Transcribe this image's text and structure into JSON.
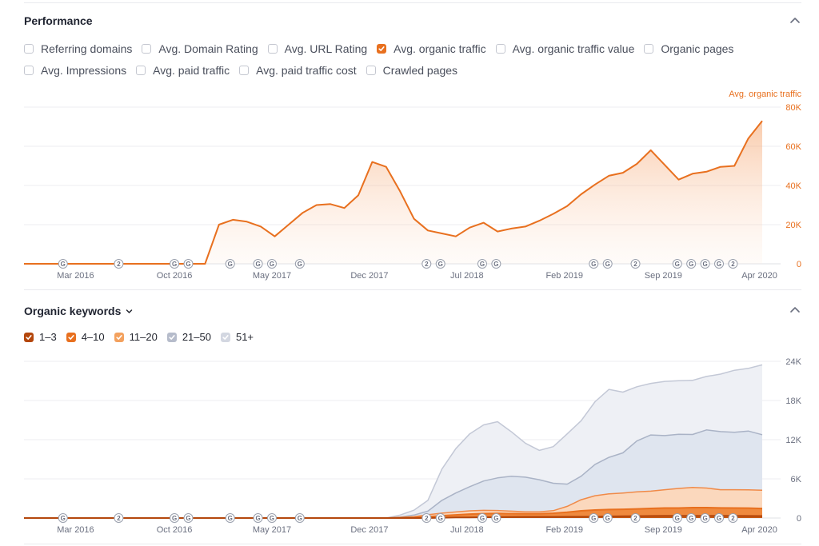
{
  "performance": {
    "title": "Performance",
    "checkboxes_row1": [
      {
        "label": "Referring domains",
        "checked": false
      },
      {
        "label": "Avg. Domain Rating",
        "checked": false
      },
      {
        "label": "Avg. URL Rating",
        "checked": false
      },
      {
        "label": "Avg. organic traffic",
        "checked": true
      },
      {
        "label": "Avg. organic traffic value",
        "checked": false
      },
      {
        "label": "Organic pages",
        "checked": false
      }
    ],
    "checkboxes_row2": [
      {
        "label": "Avg. Impressions",
        "checked": false
      },
      {
        "label": "Avg. paid traffic",
        "checked": false
      },
      {
        "label": "Avg. paid traffic cost",
        "checked": false
      },
      {
        "label": "Crawled pages",
        "checked": false
      }
    ],
    "series_label": "Avg. organic traffic"
  },
  "keywords": {
    "title": "Organic keywords",
    "legend": [
      {
        "label": "1–3",
        "color": "#b4470c"
      },
      {
        "label": "4–10",
        "color": "#e8701f"
      },
      {
        "label": "11–20",
        "color": "#f3a15e"
      },
      {
        "label": "21–50",
        "color": "#b6bccb"
      },
      {
        "label": "51+",
        "color": "#d3d7e1"
      }
    ]
  },
  "colors": {
    "accent": "#e8701f",
    "grid": "#e9eaee",
    "axis_text": "#6b7080"
  },
  "chart_data": [
    {
      "type": "area",
      "title": "Performance",
      "series": [
        {
          "name": "Avg. organic traffic",
          "color": "#e8701f",
          "values": [
            0,
            0,
            0,
            0,
            0,
            0,
            0,
            0,
            0,
            0,
            0,
            0,
            0,
            0,
            20000,
            22500,
            21500,
            19000,
            14000,
            20000,
            26000,
            30000,
            30500,
            28500,
            35000,
            52000,
            49500,
            37000,
            23000,
            17000,
            15500,
            14000,
            18500,
            21000,
            16500,
            18000,
            19000,
            22000,
            25500,
            29500,
            35500,
            40500,
            45000,
            46500,
            51000,
            58000,
            50500,
            43000,
            46000,
            47000,
            49500,
            50000,
            64000,
            73000
          ]
        }
      ],
      "x_count": 54,
      "xticks": [
        {
          "label": "Mar 2016",
          "index": 3.7
        },
        {
          "label": "Oct 2016",
          "index": 10.8
        },
        {
          "label": "May 2017",
          "index": 17.8
        },
        {
          "label": "Dec 2017",
          "index": 24.8
        },
        {
          "label": "Jul 2018",
          "index": 31.8
        },
        {
          "label": "Feb 2019",
          "index": 38.8
        },
        {
          "label": "Sep 2019",
          "index": 45.9
        },
        {
          "label": "Apr 2020",
          "index": 52.8
        }
      ],
      "yticks": [
        "0",
        "20K",
        "40K",
        "60K",
        "80K"
      ],
      "ylim": [
        0,
        80000
      ],
      "ylabel": "Avg. organic traffic",
      "markers": [
        {
          "label": "G",
          "index": 2.8
        },
        {
          "label": "2",
          "index": 6.8
        },
        {
          "label": "G",
          "index": 10.8
        },
        {
          "label": "G",
          "index": 11.8
        },
        {
          "label": "G",
          "index": 14.8
        },
        {
          "label": "G",
          "index": 16.8
        },
        {
          "label": "G",
          "index": 17.8
        },
        {
          "label": "G",
          "index": 19.8
        },
        {
          "label": "2",
          "index": 28.9
        },
        {
          "label": "G",
          "index": 29.9
        },
        {
          "label": "G",
          "index": 32.9
        },
        {
          "label": "G",
          "index": 33.9
        },
        {
          "label": "G",
          "index": 40.9
        },
        {
          "label": "G",
          "index": 41.9
        },
        {
          "label": "2",
          "index": 43.9
        },
        {
          "label": "G",
          "index": 46.9
        },
        {
          "label": "G",
          "index": 47.9
        },
        {
          "label": "G",
          "index": 48.9
        },
        {
          "label": "G",
          "index": 49.9
        },
        {
          "label": "2",
          "index": 50.9
        }
      ]
    },
    {
      "type": "area",
      "title": "Organic keywords",
      "stacked": true,
      "x_count": 54,
      "series": [
        {
          "name": "1–3",
          "color": "#b4470c",
          "values": [
            0,
            0,
            0,
            0,
            0,
            0,
            0,
            0,
            0,
            0,
            0,
            0,
            0,
            0,
            0,
            0,
            0,
            0,
            0,
            0,
            0,
            0,
            0,
            0,
            0,
            0,
            0,
            0,
            0,
            0,
            50,
            80,
            100,
            120,
            150,
            170,
            180,
            180,
            180,
            190,
            200,
            220,
            250,
            280,
            300,
            320,
            330,
            330,
            340,
            340,
            340,
            330,
            320,
            310
          ]
        },
        {
          "name": "4–10",
          "color": "#e8701f",
          "values": [
            0,
            0,
            0,
            0,
            0,
            0,
            0,
            0,
            0,
            0,
            0,
            0,
            0,
            0,
            0,
            0,
            0,
            0,
            0,
            0,
            0,
            0,
            0,
            0,
            0,
            0,
            0,
            50,
            100,
            200,
            300,
            400,
            500,
            550,
            550,
            500,
            480,
            480,
            550,
            700,
            900,
            1000,
            1050,
            1050,
            1100,
            1150,
            1200,
            1200,
            1250,
            1250,
            1200,
            1200,
            1200,
            1150
          ]
        },
        {
          "name": "11–20",
          "color": "#f3a15e",
          "values": [
            0,
            0,
            0,
            0,
            0,
            0,
            0,
            0,
            0,
            0,
            0,
            0,
            0,
            0,
            0,
            0,
            0,
            0,
            0,
            0,
            0,
            0,
            0,
            0,
            0,
            0,
            0,
            50,
            100,
            300,
            400,
            450,
            500,
            500,
            450,
            380,
            300,
            300,
            400,
            900,
            1700,
            2200,
            2400,
            2500,
            2600,
            2650,
            2800,
            3000,
            3100,
            3000,
            2800,
            2800,
            2800,
            2800
          ]
        },
        {
          "name": "21–50",
          "color": "#b6bccb",
          "values": [
            0,
            0,
            0,
            0,
            0,
            0,
            0,
            0,
            0,
            0,
            0,
            0,
            0,
            0,
            0,
            0,
            0,
            0,
            0,
            0,
            0,
            0,
            0,
            0,
            0,
            0,
            0,
            50,
            250,
            550,
            1950,
            2900,
            3700,
            4500,
            5000,
            5350,
            5300,
            4900,
            4200,
            3400,
            3600,
            4800,
            5600,
            6150,
            7800,
            8600,
            8300,
            8300,
            8100,
            8900,
            8900,
            8800,
            9000,
            8500
          ]
        },
        {
          "name": "51+",
          "color": "#d3d7e1",
          "values": [
            0,
            0,
            0,
            0,
            0,
            0,
            0,
            0,
            0,
            0,
            0,
            0,
            0,
            0,
            0,
            0,
            0,
            0,
            0,
            0,
            0,
            0,
            0,
            0,
            0,
            0,
            0,
            300,
            750,
            1650,
            4800,
            6800,
            8100,
            8600,
            8600,
            6800,
            5200,
            4500,
            5600,
            7700,
            8500,
            9600,
            10400,
            9300,
            8300,
            7900,
            8300,
            8200,
            8300,
            8200,
            8800,
            9500,
            9600,
            10700
          ]
        }
      ],
      "xticks": [
        {
          "label": "Mar 2016",
          "index": 3.7
        },
        {
          "label": "Oct 2016",
          "index": 10.8
        },
        {
          "label": "May 2017",
          "index": 17.8
        },
        {
          "label": "Dec 2017",
          "index": 24.8
        },
        {
          "label": "Jul 2018",
          "index": 31.8
        },
        {
          "label": "Feb 2019",
          "index": 38.8
        },
        {
          "label": "Sep 2019",
          "index": 45.9
        },
        {
          "label": "Apr 2020",
          "index": 52.8
        }
      ],
      "yticks": [
        "0",
        "6K",
        "12K",
        "18K",
        "24K"
      ],
      "ylim": [
        0,
        24000
      ],
      "markers": [
        {
          "label": "G",
          "index": 2.8
        },
        {
          "label": "2",
          "index": 6.8
        },
        {
          "label": "G",
          "index": 10.8
        },
        {
          "label": "G",
          "index": 11.8
        },
        {
          "label": "G",
          "index": 14.8
        },
        {
          "label": "G",
          "index": 16.8
        },
        {
          "label": "G",
          "index": 17.8
        },
        {
          "label": "G",
          "index": 19.8
        },
        {
          "label": "2",
          "index": 28.9
        },
        {
          "label": "G",
          "index": 29.9
        },
        {
          "label": "G",
          "index": 32.9
        },
        {
          "label": "G",
          "index": 33.9
        },
        {
          "label": "G",
          "index": 40.9
        },
        {
          "label": "G",
          "index": 41.9
        },
        {
          "label": "2",
          "index": 43.9
        },
        {
          "label": "G",
          "index": 46.9
        },
        {
          "label": "G",
          "index": 47.9
        },
        {
          "label": "G",
          "index": 48.9
        },
        {
          "label": "G",
          "index": 49.9
        },
        {
          "label": "2",
          "index": 50.9
        }
      ]
    }
  ]
}
